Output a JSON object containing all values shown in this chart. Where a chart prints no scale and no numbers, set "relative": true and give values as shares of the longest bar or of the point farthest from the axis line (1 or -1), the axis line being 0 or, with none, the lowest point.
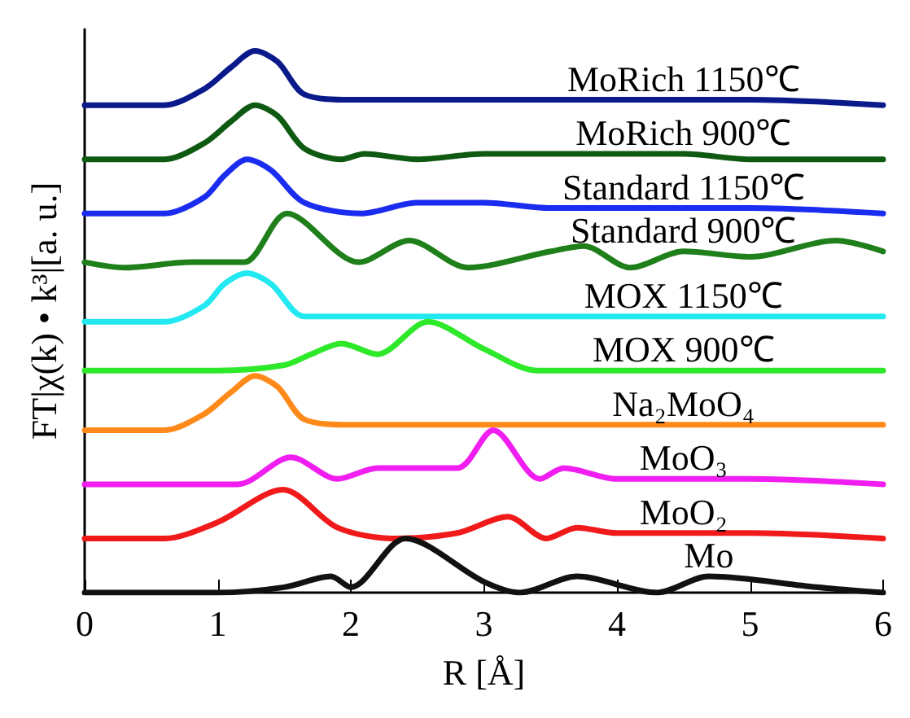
{
  "chart_data": {
    "type": "line",
    "relative": true,
    "xlabel": "R [Å]",
    "ylabel": "FT|χ(k) • k³|[a. u.]",
    "xlim": [
      0,
      6
    ],
    "xticks": [
      0,
      1,
      2,
      3,
      4,
      5,
      6
    ],
    "grid": false,
    "legend": false,
    "marker": "none",
    "line_style": "solid",
    "series": [
      {
        "name": "MoRich 1150℃",
        "color": "#0a1a8a",
        "x": [
          0,
          0.6,
          0.9,
          1.1,
          1.28,
          1.45,
          1.65,
          2,
          3,
          4,
          4.5,
          5,
          6
        ],
        "values": [
          0.9,
          0.9,
          0.93,
          0.97,
          1.0,
          0.98,
          0.92,
          0.91,
          0.91,
          0.91,
          0.91,
          0.91,
          0.9
        ]
      },
      {
        "name": "MoRich 900℃",
        "color": "#0f5a12",
        "x": [
          0,
          0.6,
          0.9,
          1.1,
          1.28,
          1.45,
          1.65,
          1.93,
          2.1,
          2.5,
          3,
          4,
          4.5,
          5,
          6
        ],
        "values": [
          0.8,
          0.8,
          0.83,
          0.87,
          0.9,
          0.88,
          0.82,
          0.8,
          0.81,
          0.8,
          0.81,
          0.81,
          0.81,
          0.8,
          0.8
        ]
      },
      {
        "name": "Standard 1150℃",
        "color": "#1a2cf0",
        "x": [
          0,
          0.6,
          0.9,
          1.05,
          1.22,
          1.4,
          1.65,
          2.08,
          2.5,
          3,
          3.5,
          4,
          4.5,
          5,
          6
        ],
        "values": [
          0.7,
          0.7,
          0.73,
          0.77,
          0.8,
          0.78,
          0.72,
          0.7,
          0.72,
          0.72,
          0.71,
          0.71,
          0.71,
          0.71,
          0.7
        ]
      },
      {
        "name": "Standard 900℃",
        "color": "#1f7f1a",
        "x": [
          0,
          0.3,
          0.8,
          1,
          1.2,
          1.52,
          2.06,
          2.44,
          2.88,
          3.5,
          3.75,
          4.1,
          4.5,
          5,
          5.65,
          6
        ],
        "values": [
          0.61,
          0.6,
          0.61,
          0.61,
          0.61,
          0.7,
          0.61,
          0.65,
          0.6,
          0.63,
          0.64,
          0.6,
          0.63,
          0.62,
          0.65,
          0.63
        ]
      },
      {
        "name": "MOX 1150℃",
        "color": "#22e8f0",
        "x": [
          0,
          0.6,
          0.9,
          1.05,
          1.22,
          1.4,
          1.65,
          2,
          3,
          4,
          4.5,
          5,
          6
        ],
        "values": [
          0.5,
          0.5,
          0.53,
          0.57,
          0.59,
          0.57,
          0.51,
          0.51,
          0.51,
          0.51,
          0.51,
          0.51,
          0.51
        ]
      },
      {
        "name": "MOX 900℃",
        "color": "#2ee82a",
        "x": [
          0,
          1,
          1.5,
          1.7,
          1.93,
          2.2,
          2.58,
          3,
          3.4,
          4,
          4.5,
          5,
          6
        ],
        "values": [
          0.41,
          0.41,
          0.42,
          0.44,
          0.46,
          0.44,
          0.5,
          0.45,
          0.41,
          0.41,
          0.41,
          0.41,
          0.41
        ]
      },
      {
        "name": "Na₂MoO₄",
        "color": "#ff8a1a",
        "x": [
          0,
          0.6,
          0.9,
          1.1,
          1.28,
          1.45,
          1.65,
          2,
          3,
          4,
          4.5,
          5,
          6
        ],
        "values": [
          0.3,
          0.3,
          0.33,
          0.37,
          0.4,
          0.38,
          0.32,
          0.31,
          0.31,
          0.31,
          0.31,
          0.31,
          0.31
        ]
      },
      {
        "name": "MoO₃",
        "color": "#f01ef0",
        "x": [
          0,
          1.15,
          1.55,
          1.9,
          2.2,
          2.8,
          3.07,
          3.42,
          3.6,
          4,
          4.5,
          5,
          6
        ],
        "values": [
          0.2,
          0.2,
          0.25,
          0.21,
          0.23,
          0.23,
          0.3,
          0.21,
          0.23,
          0.21,
          0.21,
          0.21,
          0.2
        ]
      },
      {
        "name": "MoO₂",
        "color": "#f01a1a",
        "x": [
          0,
          0.6,
          1.0,
          1.49,
          1.9,
          2.32,
          2.8,
          3.18,
          3.47,
          3.7,
          4,
          4.5,
          5,
          6
        ],
        "values": [
          0.1,
          0.1,
          0.13,
          0.19,
          0.12,
          0.1,
          0.11,
          0.14,
          0.1,
          0.12,
          0.11,
          0.11,
          0.11,
          0.1
        ]
      },
      {
        "name": "Mo",
        "color": "#111111",
        "x": [
          0,
          1,
          1.5,
          1.85,
          2.0,
          2.41,
          3,
          3.27,
          3.7,
          4.3,
          4.69,
          5.5,
          6
        ],
        "values": [
          0,
          0,
          0.01,
          0.03,
          0.01,
          0.1,
          0.02,
          0,
          0.03,
          0,
          0.03,
          0.01,
          0
        ]
      }
    ]
  }
}
